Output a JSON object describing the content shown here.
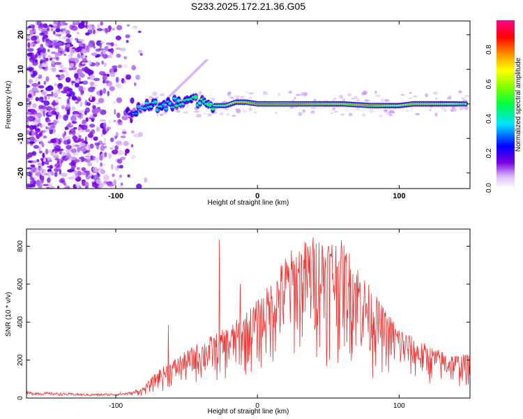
{
  "title": "S233.2025.172.21.36.G05",
  "chart_data": [
    {
      "type": "heatmap",
      "panel": "top",
      "xlabel": "Height of straight line (km)",
      "ylabel": "Frequency (Hz)",
      "xlim": [
        -163,
        150
      ],
      "ylim": [
        -24.5,
        24
      ],
      "xticks": [
        -100,
        0,
        100
      ],
      "yticks": [
        -20,
        -10,
        0,
        10,
        20
      ],
      "colorbar": {
        "label": "Normalized spectral amplitude",
        "range": [
          0,
          0.97
        ],
        "ticks": [
          0.0,
          0.2,
          0.4,
          0.6,
          0.8
        ]
      },
      "ridge": [
        {
          "x": -93,
          "y": -2.0,
          "a": 0.15
        },
        {
          "x": -85,
          "y": -1.5,
          "a": 0.35
        },
        {
          "x": -75,
          "y": -0.5,
          "a": 0.45
        },
        {
          "x": -65,
          "y": -0.5,
          "a": 0.4
        },
        {
          "x": -55,
          "y": 1.0,
          "a": 0.45
        },
        {
          "x": -45,
          "y": 1.0,
          "a": 0.5
        },
        {
          "x": -38,
          "y": 0.5,
          "a": 0.5
        },
        {
          "x": -30,
          "y": -0.5,
          "a": 0.6
        },
        {
          "x": -22,
          "y": -0.5,
          "a": 0.65
        },
        {
          "x": -15,
          "y": 0.5,
          "a": 0.75
        },
        {
          "x": -8,
          "y": 0.5,
          "a": 0.8
        },
        {
          "x": 0,
          "y": 0.0,
          "a": 0.9
        },
        {
          "x": 20,
          "y": 0.0,
          "a": 0.95
        },
        {
          "x": 40,
          "y": 0.0,
          "a": 0.85
        },
        {
          "x": 60,
          "y": 0.0,
          "a": 0.8
        },
        {
          "x": 80,
          "y": -0.5,
          "a": 0.9
        },
        {
          "x": 100,
          "y": -0.5,
          "a": 0.7
        },
        {
          "x": 110,
          "y": 0.0,
          "a": 0.85
        },
        {
          "x": 130,
          "y": 0.0,
          "a": 0.75
        },
        {
          "x": 148,
          "y": 0.0,
          "a": 0.6
        }
      ]
    },
    {
      "type": "line",
      "panel": "bottom",
      "xlabel": "Height of straight line (km)",
      "ylabel": "SNR (10 * v/v)",
      "xlim": [
        -163,
        150
      ],
      "ylim": [
        0,
        890
      ],
      "xticks": [
        -100,
        0,
        100
      ],
      "yticks": [
        0,
        200,
        400,
        600,
        800
      ],
      "color": "#ee3333",
      "x": [
        -163,
        -140,
        -120,
        -100,
        -88,
        -80,
        -70,
        -60,
        -50,
        -40,
        -30,
        -20,
        -10,
        0,
        10,
        20,
        30,
        40,
        50,
        60,
        70,
        80,
        90,
        100,
        110,
        120,
        130,
        140,
        150
      ],
      "y": [
        30,
        25,
        20,
        22,
        30,
        60,
        150,
        200,
        250,
        300,
        340,
        380,
        440,
        520,
        620,
        760,
        820,
        860,
        860,
        830,
        720,
        580,
        470,
        380,
        320,
        280,
        250,
        230,
        230
      ],
      "spikes": [
        {
          "x": -63,
          "y": 385
        },
        {
          "x": -27,
          "y": 835
        },
        {
          "x": -12,
          "y": 600
        }
      ]
    }
  ]
}
